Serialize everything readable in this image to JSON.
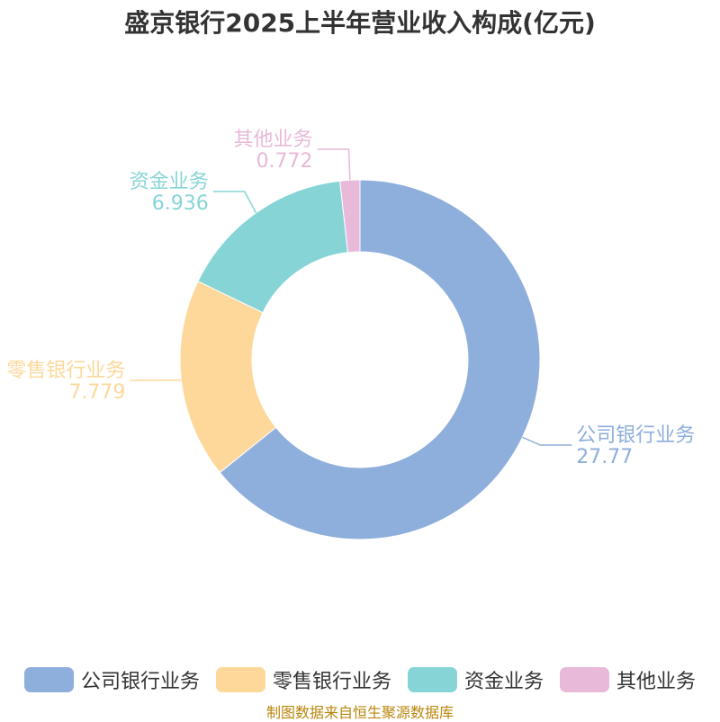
{
  "chart_data": {
    "type": "pie",
    "title": "盛京银行2025上半年营业收入构成(亿元)",
    "slices": [
      {
        "name": "公司银行业务",
        "value": 27.77,
        "value_label": "27.77",
        "color": "#8eaedb"
      },
      {
        "name": "零售银行业务",
        "value": 7.779,
        "value_label": "7.779",
        "color": "#fdd89a"
      },
      {
        "name": "资金业务",
        "value": 6.936,
        "value_label": "6.936",
        "color": "#87d4d6"
      },
      {
        "name": "其他业务",
        "value": 0.772,
        "value_label": "0.772",
        "color": "#e8b9d9"
      }
    ],
    "legend_position": "bottom",
    "donut": true
  },
  "footer": {
    "source": "制图数据来自恒生聚源数据库"
  }
}
